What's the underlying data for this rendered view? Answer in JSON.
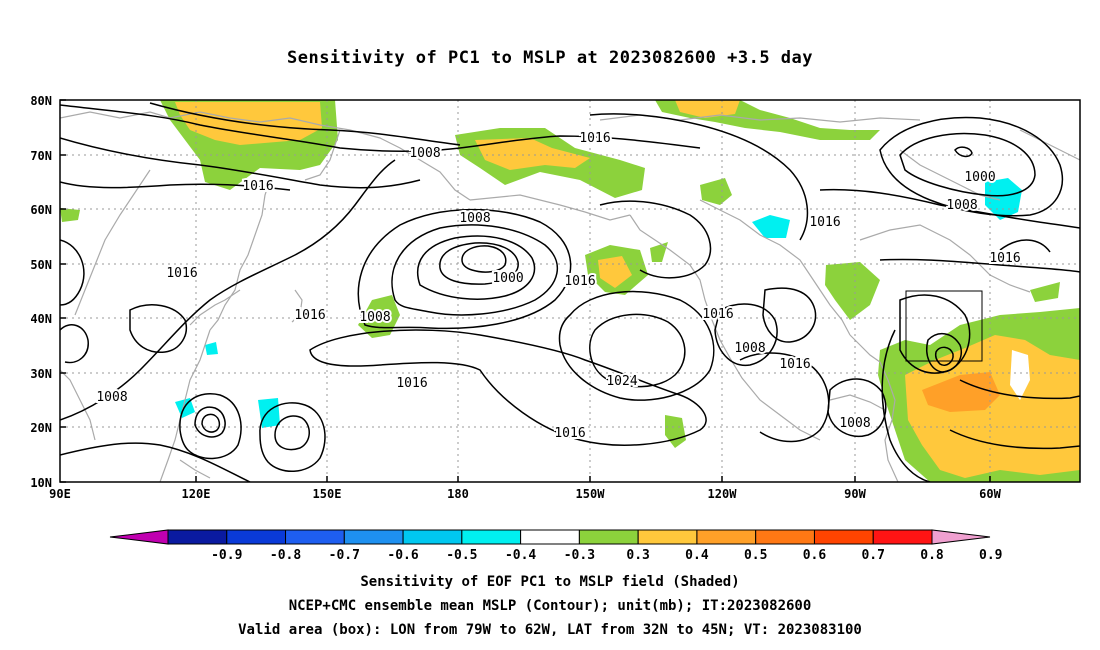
{
  "title": "Sensitivity of PC1 to MSLP at 2023082600 +3.5 day",
  "map": {
    "lat_labels": [
      "80N",
      "70N",
      "60N",
      "50N",
      "40N",
      "30N",
      "20N",
      "10N"
    ],
    "lon_labels": [
      "90E",
      "120E",
      "150E",
      "180",
      "150W",
      "120W",
      "90W",
      "60W"
    ],
    "contour_labels": [
      "1016",
      "1008",
      "1016",
      "1008",
      "1000",
      "1016",
      "1000",
      "1008",
      "1016",
      "1016",
      "1008",
      "1016",
      "1024",
      "1016",
      "1008",
      "1016",
      "1008",
      "1008",
      "1016",
      "1016",
      "1016"
    ]
  },
  "colorbar": {
    "labels": [
      "-0.9",
      "-0.8",
      "-0.7",
      "-0.6",
      "-0.5",
      "-0.4",
      "-0.3",
      "0.3",
      "0.4",
      "0.5",
      "0.6",
      "0.7",
      "0.8",
      "0.9"
    ],
    "colors": [
      "#c000b0",
      "#0a1aa0",
      "#0a3ad8",
      "#1e5ef0",
      "#1e90f0",
      "#00c8f0",
      "#00f0f0",
      "#ffffff",
      "#8cd23c",
      "#ffc83c",
      "#ffa028",
      "#ff7814",
      "#ff4400",
      "#ff1414",
      "#f0a0d0"
    ]
  },
  "footer": {
    "line1": "Sensitivity of EOF PC1 to MSLP field (Shaded)",
    "line2": "NCEP+CMC ensemble mean MSLP (Contour); unit(mb); IT:2023082600",
    "line3": "Valid area (box): LON from 79W to 62W, LAT from 32N to 45N; VT: 2023083100"
  }
}
